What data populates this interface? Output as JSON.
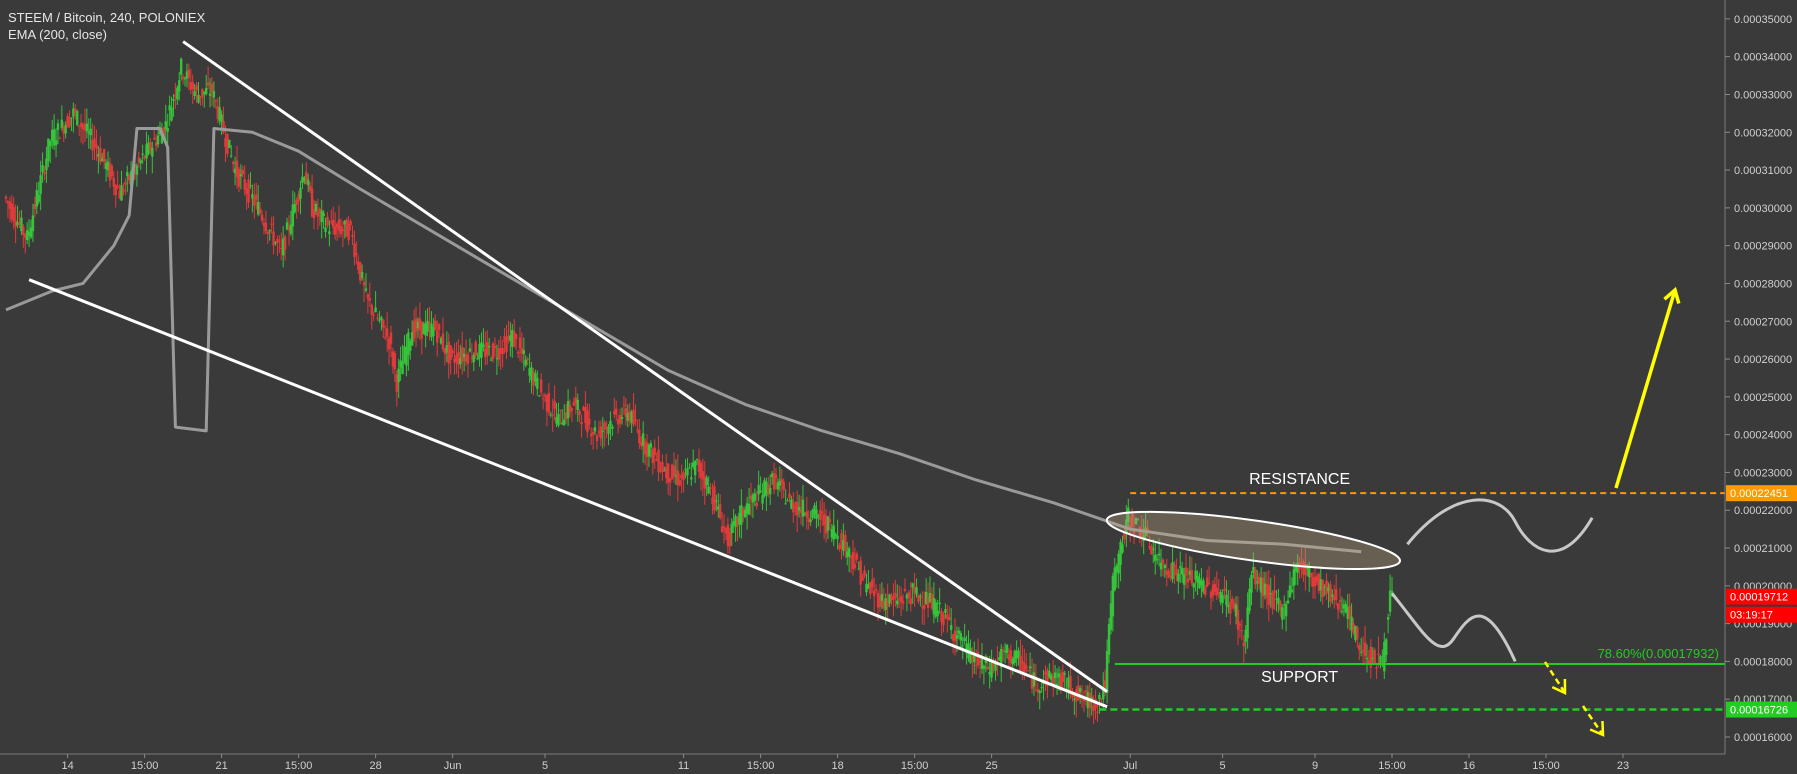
{
  "header": {
    "title": "STEEM / Bitcoin, 240, POLONIEX",
    "indicator": "EMA (200, close)"
  },
  "colors": {
    "background": "#3a3a3a",
    "candle_up": "#35c43a",
    "candle_down": "#e23a3a",
    "ema": "#9a9a9a",
    "trendline": "#ffffff",
    "resistance": "#ff9900",
    "support": "#22cc22",
    "arrow": "#ffff00",
    "price_tag": "#ff0000"
  },
  "chart_data": {
    "type": "candlestick",
    "symbol": "STEEM / Bitcoin",
    "interval": "240",
    "exchange": "POLONIEX",
    "y_axis": {
      "ylim": [
        0.0001555,
        0.000355
      ],
      "ticks": [
        0.00035,
        0.00034,
        0.00033,
        0.00032,
        0.00031,
        0.0003,
        0.00029,
        0.00028,
        0.00027,
        0.00026,
        0.00025,
        0.00024,
        0.00023,
        0.00022,
        0.00021,
        0.0002,
        0.00019,
        0.00018,
        0.00017,
        0.00016
      ],
      "tick_labels": [
        "0.00035000",
        "0.00034000",
        "0.00033000",
        "0.00032000",
        "0.00031000",
        "0.00030000",
        "0.00029000",
        "0.00028000",
        "0.00027000",
        "0.00026000",
        "0.00025000",
        "0.00024000",
        "0.00023000",
        "0.00022000",
        "0.00021000",
        "0.00020000",
        "0.00019000",
        "0.00018000",
        "0.00017000",
        "0.00016000"
      ]
    },
    "x_axis": {
      "ticks": [
        {
          "label": "14",
          "bar": 8
        },
        {
          "label": "15:00",
          "bar": 18
        },
        {
          "label": "21",
          "bar": 28
        },
        {
          "label": "15:00",
          "bar": 38
        },
        {
          "label": "28",
          "bar": 48
        },
        {
          "label": "Jun",
          "bar": 58
        },
        {
          "label": "5",
          "bar": 70
        },
        {
          "label": "11",
          "bar": 88
        },
        {
          "label": "15:00",
          "bar": 98
        },
        {
          "label": "18",
          "bar": 108
        },
        {
          "label": "15:00",
          "bar": 118
        },
        {
          "label": "25",
          "bar": 128
        },
        {
          "label": "Jul",
          "bar": 146
        },
        {
          "label": "5",
          "bar": 158
        },
        {
          "label": "9",
          "bar": 170
        },
        {
          "label": "15:00",
          "bar": 180
        },
        {
          "label": "16",
          "bar": 190
        },
        {
          "label": "15:00",
          "bar": 200
        },
        {
          "label": "23",
          "bar": 210
        }
      ]
    },
    "last_price": 0.00019712,
    "last_price_label": "0.00019712",
    "countdown": "03:19:17",
    "price_path": [
      [
        0,
        0.000303
      ],
      [
        3,
        0.000292
      ],
      [
        6,
        0.000318
      ],
      [
        9,
        0.000325
      ],
      [
        12,
        0.000316
      ],
      [
        15,
        0.000304
      ],
      [
        18,
        0.000313
      ],
      [
        21,
        0.000322
      ],
      [
        23,
        0.000337
      ],
      [
        25,
        0.00033
      ],
      [
        27,
        0.000331
      ],
      [
        30,
        0.00031
      ],
      [
        33,
        0.0003
      ],
      [
        36,
        0.000288
      ],
      [
        39,
        0.00031
      ],
      [
        40,
        0.0003
      ],
      [
        42,
        0.000295
      ],
      [
        45,
        0.000294
      ],
      [
        47,
        0.000276
      ],
      [
        50,
        0.000265
      ],
      [
        51,
        0.000254
      ],
      [
        53,
        0.000268
      ],
      [
        56,
        0.000268
      ],
      [
        58,
        0.00026
      ],
      [
        61,
        0.000262
      ],
      [
        64,
        0.000262
      ],
      [
        66,
        0.000266
      ],
      [
        68,
        0.000258
      ],
      [
        70,
        0.00025
      ],
      [
        72,
        0.000244
      ],
      [
        74,
        0.000248
      ],
      [
        77,
        0.00024
      ],
      [
        79,
        0.000244
      ],
      [
        81,
        0.000246
      ],
      [
        83,
        0.000238
      ],
      [
        86,
        0.00023
      ],
      [
        88,
        0.000228
      ],
      [
        90,
        0.000232
      ],
      [
        92,
        0.000224
      ],
      [
        94,
        0.000212
      ],
      [
        96,
        0.00022
      ],
      [
        98,
        0.000224
      ],
      [
        100,
        0.000228
      ],
      [
        102,
        0.000222
      ],
      [
        104,
        0.00022
      ],
      [
        106,
        0.000218
      ],
      [
        108,
        0.000214
      ],
      [
        110,
        0.000208
      ],
      [
        112,
        0.0002
      ],
      [
        114,
        0.000196
      ],
      [
        116,
        0.000196
      ],
      [
        118,
        0.000198
      ],
      [
        120,
        0.000196
      ],
      [
        122,
        0.000192
      ],
      [
        124,
        0.000186
      ],
      [
        126,
        0.00018
      ],
      [
        128,
        0.000178
      ],
      [
        130,
        0.000182
      ],
      [
        132,
        0.00018
      ],
      [
        134,
        0.000174
      ],
      [
        136,
        0.000176
      ],
      [
        138,
        0.000174
      ],
      [
        140,
        0.00017
      ],
      [
        142,
        0.000169
      ],
      [
        143,
        0.000174
      ],
      [
        144,
        0.000201
      ],
      [
        146,
        0.000218
      ],
      [
        148,
        0.000214
      ],
      [
        150,
        0.000206
      ],
      [
        152,
        0.000204
      ],
      [
        154,
        0.000202
      ],
      [
        156,
        0.0002
      ],
      [
        158,
        0.000198
      ],
      [
        160,
        0.000193
      ],
      [
        161,
        0.000184
      ],
      [
        162,
        0.000203
      ],
      [
        164,
        0.000198
      ],
      [
        166,
        0.000193
      ],
      [
        168,
        0.000206
      ],
      [
        170,
        0.000202
      ],
      [
        172,
        0.000198
      ],
      [
        174,
        0.000195
      ],
      [
        176,
        0.000184
      ],
      [
        178,
        0.00018
      ],
      [
        179,
        0.00018
      ],
      [
        180,
        0.000197
      ]
    ],
    "ema_200": [
      [
        0,
        0.000273
      ],
      [
        6,
        0.000278
      ],
      [
        10,
        0.00028
      ],
      [
        14,
        0.00029
      ],
      [
        16,
        0.000298
      ],
      [
        17,
        0.000321
      ],
      [
        20,
        0.000321
      ],
      [
        21,
        0.000316
      ],
      [
        22,
        0.000242
      ],
      [
        26,
        0.000241
      ],
      [
        27,
        0.000321
      ],
      [
        32,
        0.00032
      ],
      [
        38,
        0.000315
      ],
      [
        46,
        0.000305
      ],
      [
        56,
        0.000293
      ],
      [
        66,
        0.000281
      ],
      [
        76,
        0.000269
      ],
      [
        86,
        0.000257
      ],
      [
        96,
        0.000248
      ],
      [
        106,
        0.000241
      ],
      [
        116,
        0.000235
      ],
      [
        126,
        0.000228
      ],
      [
        136,
        0.000222
      ],
      [
        146,
        0.000215
      ],
      [
        156,
        0.000212
      ],
      [
        166,
        0.000211
      ],
      [
        176,
        0.000209
      ]
    ],
    "annotations": {
      "resistance_label": "RESISTANCE",
      "resistance_value": 0.00022451,
      "resistance_price_tag": "0.00022451",
      "support_label": "SUPPORT",
      "fib_label": "78.60%(0.00017932)",
      "fib_value": 0.00017932,
      "lower_support_value": 0.00016726,
      "lower_support_price_tag": "0.00016726"
    }
  }
}
